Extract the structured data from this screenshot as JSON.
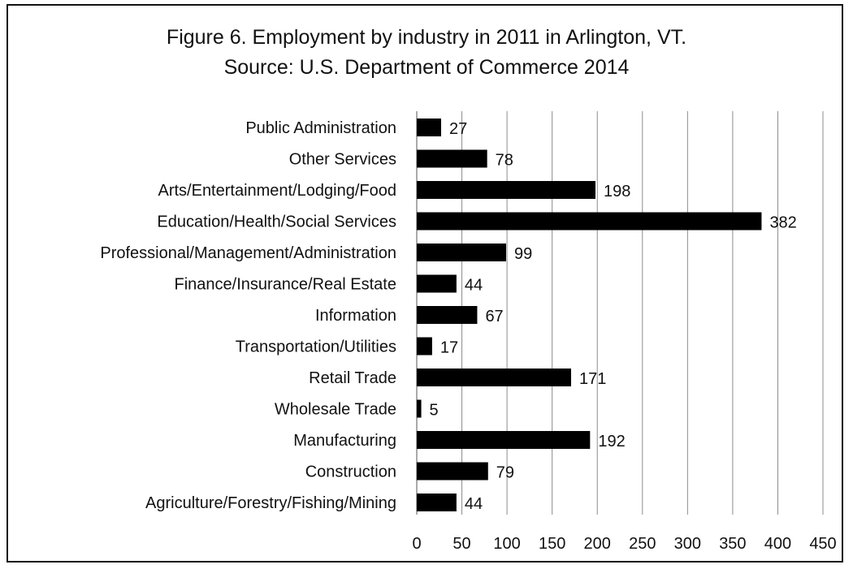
{
  "chart_data": {
    "type": "bar",
    "orientation": "horizontal",
    "title": "Figure 6. Employment by industry in 2011 in Arlington, VT.",
    "subtitle": "Source: U.S. Department of Commerce 2014",
    "xlabel": "",
    "ylabel": "",
    "categories": [
      "Public Administration",
      "Other Services",
      "Arts/Entertainment/Lodging/Food",
      "Education/Health/Social Services",
      "Professional/Management/Administration",
      "Finance/Insurance/Real Estate",
      "Information",
      "Transportation/Utilities",
      "Retail Trade",
      "Wholesale Trade",
      "Manufacturing",
      "Construction",
      "Agriculture/Forestry/Fishing/Mining"
    ],
    "values": [
      27,
      78,
      198,
      382,
      99,
      44,
      67,
      17,
      171,
      5,
      192,
      79,
      44
    ],
    "xlim": [
      0,
      450
    ],
    "ticks": [
      0,
      50,
      100,
      150,
      200,
      250,
      300,
      350,
      400,
      450
    ],
    "grid": true,
    "legend": "none",
    "bar_color": "#000000",
    "grid_color": "#8c8c8c"
  }
}
